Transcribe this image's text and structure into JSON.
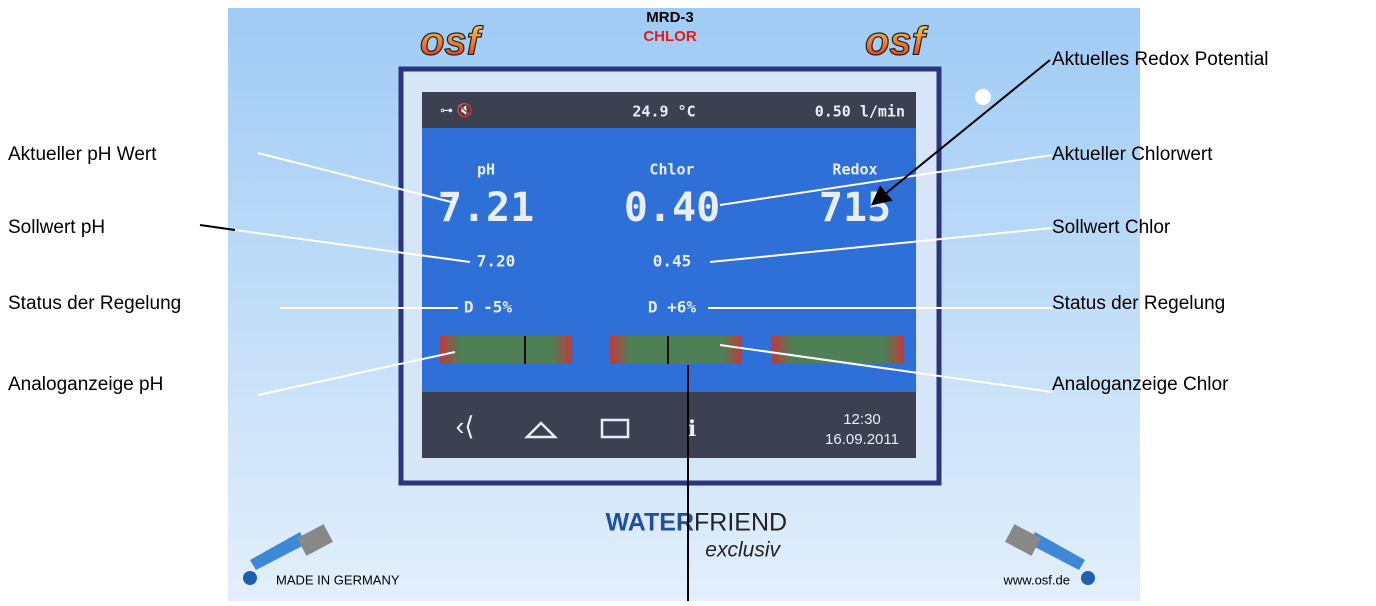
{
  "header": {
    "logo": "osf",
    "model": "MRD-3",
    "variant": "CHLOR"
  },
  "screen": {
    "status_bar": {
      "temperature": "24.9 °C",
      "flow": "0.50 l/min"
    },
    "columns": [
      {
        "label": "pH",
        "value": "7.21",
        "setpoint": "7.20",
        "status": "D -5%"
      },
      {
        "label": "Chlor",
        "value": "0.40",
        "setpoint": "0.45",
        "status": "D +6%"
      },
      {
        "label": "Redox",
        "value": "715"
      }
    ],
    "nav": {
      "time": "12:30",
      "date": "16.09.2011"
    }
  },
  "brand": {
    "word1": "WATER",
    "word2": "FRIEND",
    "tagline": "exclusiv"
  },
  "footer": {
    "left": "MADE IN GERMANY",
    "right": "www.osf.de"
  },
  "annotations": {
    "left": [
      "Aktueller pH Wert",
      "Sollwert pH",
      "Status der Regelung",
      "Analoganzeige pH"
    ],
    "right": [
      "Aktuelles Redox Potential",
      "Aktueller Chlorwert",
      "Sollwert Chlor",
      "Status der Regelung",
      "Analoganzeige Chlor"
    ]
  }
}
